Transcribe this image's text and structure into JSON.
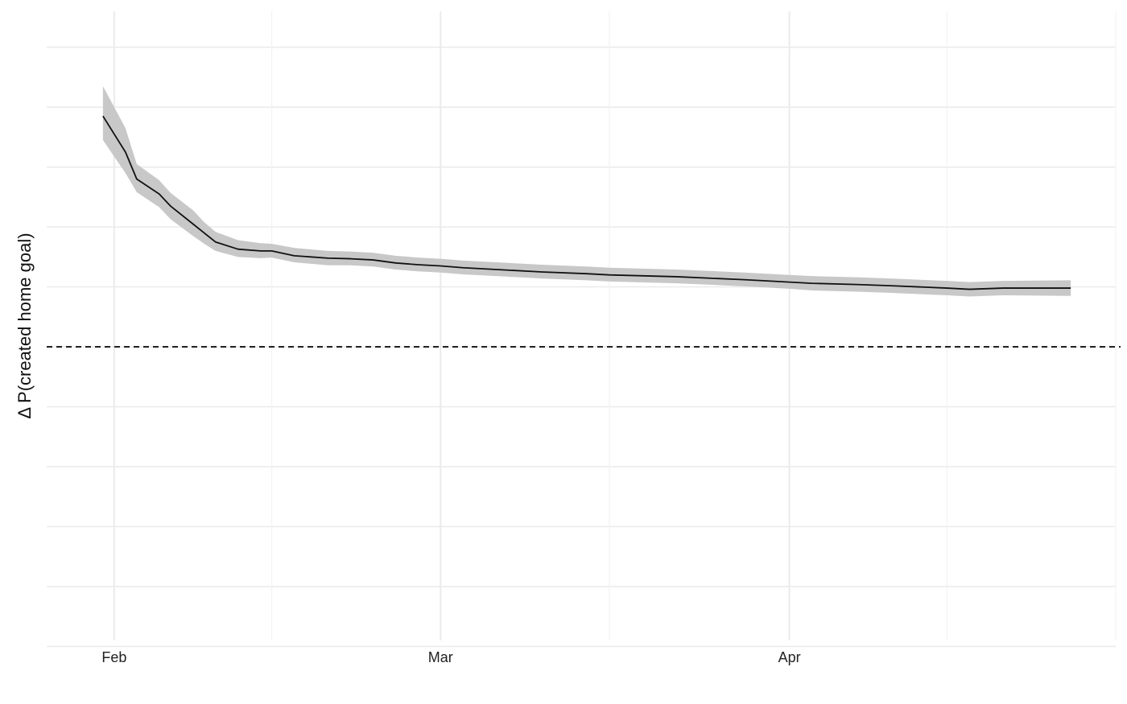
{
  "chart_data": {
    "type": "line",
    "title": "",
    "xlabel": "",
    "ylabel": "Δ P(created home goal)",
    "x_tick_labels": [
      "Feb",
      "Mar",
      "Apr"
    ],
    "x_ticks": [
      "2020-02-01",
      "2020-03-01",
      "2020-04-01"
    ],
    "x_minor_ticks": [
      "2020-02-15",
      "2020-03-16",
      "2020-04-15",
      "2020-04-30"
    ],
    "xlim": [
      "2020-01-26",
      "2020-04-30"
    ],
    "ylim": [
      -0.049,
      0.056
    ],
    "y_gridlines": [
      -0.05,
      -0.04,
      -0.03,
      -0.02,
      -0.01,
      0.0,
      0.01,
      0.02,
      0.03,
      0.04,
      0.05
    ],
    "y_tick_labels_shown": false,
    "reference_line": {
      "y": 0.0,
      "style": "dashed"
    },
    "grid": true,
    "confidence_band": true,
    "series": [
      {
        "x": [
          "2020-01-31",
          "2020-02-02",
          "2020-02-03",
          "2020-02-05",
          "2020-02-06",
          "2020-02-08",
          "2020-02-09",
          "2020-02-10",
          "2020-02-12",
          "2020-02-14",
          "2020-02-15",
          "2020-02-17",
          "2020-02-20",
          "2020-02-22",
          "2020-02-24",
          "2020-02-26",
          "2020-02-28",
          "2020-03-01",
          "2020-03-03",
          "2020-03-07",
          "2020-03-10",
          "2020-03-14",
          "2020-03-16",
          "2020-03-22",
          "2020-03-28",
          "2020-04-01",
          "2020-04-03",
          "2020-04-07",
          "2020-04-10",
          "2020-04-15",
          "2020-04-17",
          "2020-04-20",
          "2020-04-26"
        ],
        "y": [
          0.0385,
          0.0325,
          0.028,
          0.0255,
          0.0235,
          0.0205,
          0.019,
          0.0175,
          0.0163,
          0.016,
          0.016,
          0.0152,
          0.0148,
          0.0147,
          0.0145,
          0.014,
          0.0137,
          0.0135,
          0.0132,
          0.0128,
          0.0125,
          0.0122,
          0.012,
          0.0117,
          0.0112,
          0.0108,
          0.0106,
          0.0104,
          0.0102,
          0.0098,
          0.0096,
          0.0098,
          0.0098
        ],
        "lower": [
          0.0345,
          0.029,
          0.0258,
          0.0233,
          0.0213,
          0.0185,
          0.0172,
          0.016,
          0.015,
          0.0148,
          0.0149,
          0.0141,
          0.0136,
          0.0136,
          0.0134,
          0.0129,
          0.0126,
          0.0124,
          0.0121,
          0.0117,
          0.0114,
          0.0111,
          0.0109,
          0.0106,
          0.0101,
          0.0097,
          0.0094,
          0.0092,
          0.009,
          0.0086,
          0.0084,
          0.0086,
          0.0085
        ],
        "upper": [
          0.0435,
          0.0365,
          0.0305,
          0.0278,
          0.0257,
          0.0228,
          0.0208,
          0.0192,
          0.0178,
          0.0173,
          0.0172,
          0.0165,
          0.016,
          0.0159,
          0.0157,
          0.0152,
          0.0149,
          0.0147,
          0.0144,
          0.014,
          0.0137,
          0.0134,
          0.0132,
          0.0129,
          0.0124,
          0.012,
          0.0118,
          0.0116,
          0.0114,
          0.011,
          0.0108,
          0.011,
          0.0111
        ]
      }
    ]
  }
}
